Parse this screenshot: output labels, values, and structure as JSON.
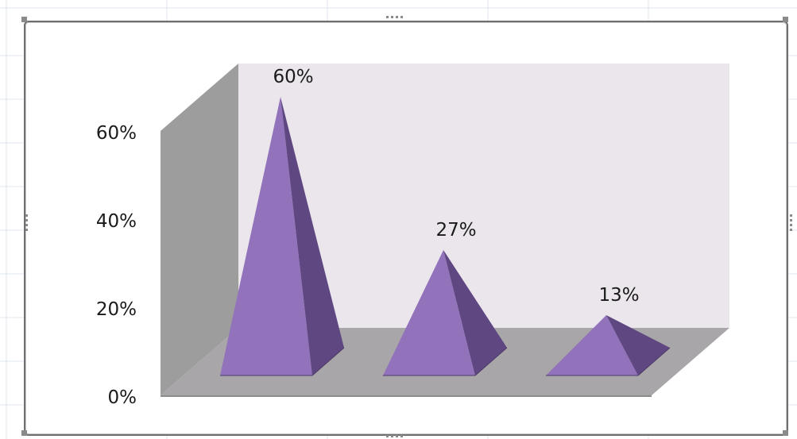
{
  "chart_data": {
    "type": "bar",
    "shape": "3d-pyramid",
    "categories": [
      "",
      "",
      ""
    ],
    "series": [
      {
        "values": [
          60,
          27,
          13
        ]
      }
    ],
    "data_labels": [
      "60%",
      "27%",
      "13%"
    ],
    "y_ticks": [
      {
        "value": 0,
        "label": "0%"
      },
      {
        "value": 20,
        "label": "20%"
      },
      {
        "value": 40,
        "label": "40%"
      },
      {
        "value": 60,
        "label": "60%"
      }
    ],
    "ylim": [
      0,
      60
    ],
    "grid": false,
    "legend": "none",
    "colors": {
      "pyramid_front": "#9272bb",
      "pyramid_side": "#5f4782",
      "back_wall": "#ebe6ec",
      "side_wall": "#9d9d9d",
      "floor": "#a8a6a8"
    }
  }
}
